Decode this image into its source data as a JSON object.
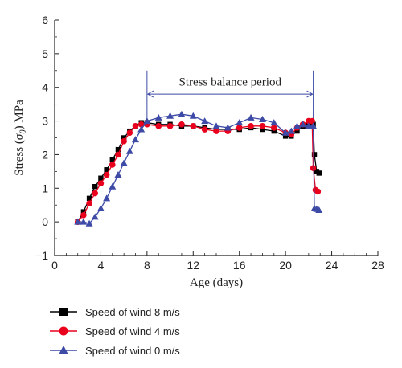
{
  "chart_data": {
    "type": "line",
    "title": "",
    "xlabel": "Age (days)",
    "ylabel": "Stress (σθ) MPa",
    "xlim": [
      0,
      28
    ],
    "ylim": [
      -1,
      6
    ],
    "xticks": [
      "0",
      "4",
      "8",
      "12",
      "16",
      "20",
      "24",
      "28"
    ],
    "yticks": [
      "−1",
      "0",
      "1",
      "2",
      "3",
      "4",
      "5",
      "6"
    ],
    "grid": false,
    "legend_position": "bottom-left, outside plot",
    "annotation": {
      "text": "Stress balance period",
      "x_start": 8,
      "x_end": 22.4
    },
    "series": [
      {
        "name": "Speed of wind 8 m/s",
        "color": "#000000",
        "marker": "square",
        "x": [
          2.0,
          2.5,
          3.0,
          3.5,
          4.0,
          4.5,
          5.0,
          5.5,
          6.0,
          6.5,
          7.0,
          7.5,
          8.0,
          9.0,
          10.0,
          11.0,
          12.0,
          13.0,
          14.0,
          15.0,
          16.0,
          17.0,
          18.0,
          19.0,
          20.0,
          20.5,
          21.0,
          21.5,
          22.0,
          22.4,
          22.5,
          22.7,
          22.9
        ],
        "y": [
          0.0,
          0.3,
          0.7,
          1.05,
          1.3,
          1.55,
          1.85,
          2.15,
          2.5,
          2.7,
          2.85,
          2.95,
          2.95,
          2.9,
          2.9,
          2.85,
          2.85,
          2.8,
          2.75,
          2.75,
          2.75,
          2.8,
          2.75,
          2.7,
          2.55,
          2.55,
          2.7,
          2.85,
          2.9,
          2.9,
          2.0,
          1.5,
          1.45
        ]
      },
      {
        "name": "Speed of wind 4 m/s",
        "color": "#e8001c",
        "marker": "circle",
        "x": [
          2.0,
          2.5,
          3.0,
          3.5,
          4.0,
          4.5,
          5.0,
          5.5,
          6.0,
          6.5,
          7.0,
          7.5,
          8.0,
          9.0,
          10.0,
          11.0,
          12.0,
          13.0,
          14.0,
          15.0,
          16.0,
          17.0,
          18.0,
          19.0,
          20.0,
          20.5,
          21.0,
          21.5,
          22.0,
          22.3,
          22.4,
          22.6,
          22.8
        ],
        "y": [
          0.0,
          0.2,
          0.55,
          0.85,
          1.15,
          1.4,
          1.7,
          2.0,
          2.4,
          2.65,
          2.85,
          2.9,
          2.9,
          2.85,
          2.85,
          2.9,
          2.85,
          2.75,
          2.7,
          2.7,
          2.8,
          2.85,
          2.85,
          2.8,
          2.65,
          2.6,
          2.8,
          2.9,
          3.0,
          3.0,
          1.6,
          0.95,
          0.9
        ]
      },
      {
        "name": "Speed of wind 0 m/s",
        "color": "#3d4aa6",
        "marker": "triangle",
        "x": [
          2.0,
          2.5,
          3.0,
          3.5,
          4.0,
          4.5,
          5.0,
          5.5,
          6.0,
          6.5,
          7.0,
          7.5,
          8.0,
          9.0,
          10.0,
          11.0,
          12.0,
          13.0,
          14.0,
          15.0,
          16.0,
          17.0,
          18.0,
          19.0,
          20.0,
          20.5,
          21.0,
          21.5,
          22.0,
          22.4,
          22.5,
          22.7,
          22.9
        ],
        "y": [
          0.0,
          0.0,
          -0.05,
          0.15,
          0.4,
          0.7,
          1.05,
          1.4,
          1.75,
          2.1,
          2.45,
          2.75,
          3.0,
          3.1,
          3.15,
          3.2,
          3.15,
          3.0,
          2.85,
          2.8,
          2.95,
          3.1,
          3.05,
          2.95,
          2.65,
          2.7,
          2.85,
          2.9,
          2.85,
          2.85,
          0.4,
          0.38,
          0.35
        ]
      }
    ]
  }
}
